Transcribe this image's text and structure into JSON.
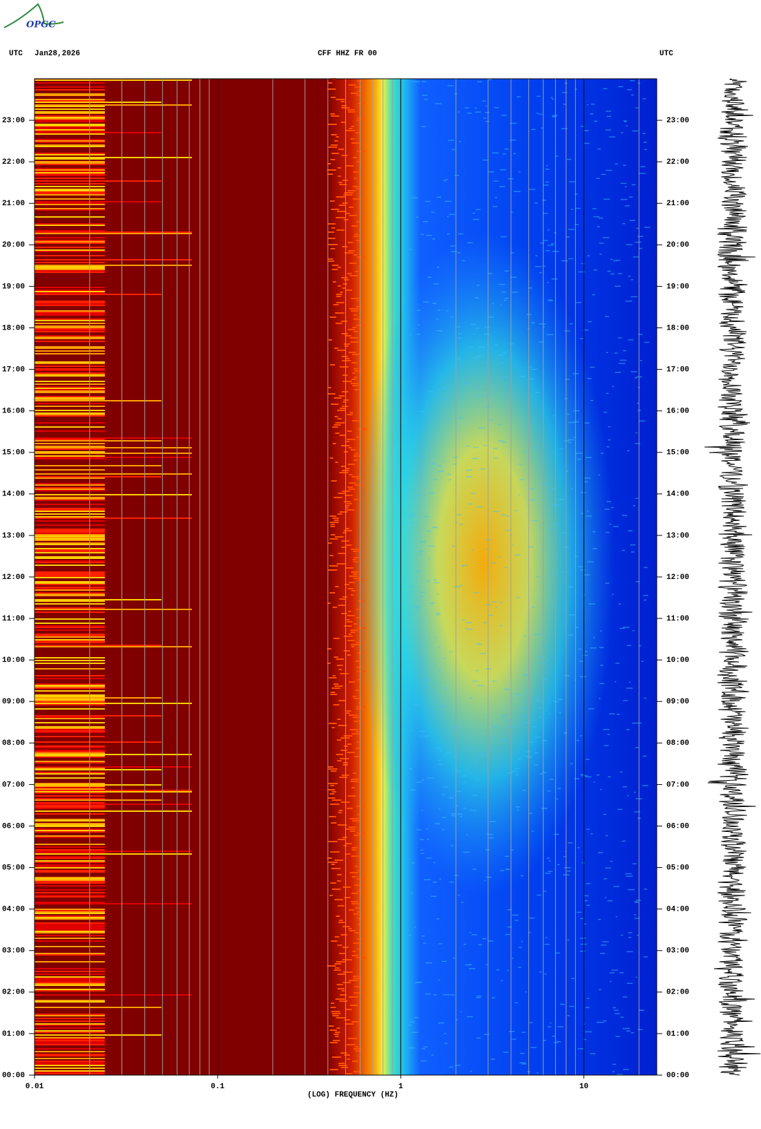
{
  "logo": "OPGC",
  "chart_data": {
    "type": "spectrogram",
    "title": "CFF HHZ FR 00",
    "date": "Jan28,2026",
    "timezone_left": "UTC",
    "timezone_right": "UTC",
    "xlabel": "(LOG) FREQUENCY (HZ)",
    "xscale": "log",
    "xlim": [
      0.01,
      25
    ],
    "xticks": [
      0.01,
      0.1,
      1,
      10
    ],
    "xgrid": [
      0.02,
      0.03,
      0.04,
      0.05,
      0.06,
      0.07,
      0.08,
      0.09,
      0.1,
      0.2,
      0.3,
      0.4,
      0.5,
      0.6,
      0.7,
      0.8,
      0.9,
      1,
      2,
      3,
      4,
      5,
      6,
      7,
      8,
      9,
      10,
      20
    ],
    "ylim": [
      0,
      24
    ],
    "yticks": [
      {
        "value": 0,
        "label": "00:00"
      },
      {
        "value": 1,
        "label": "01:00"
      },
      {
        "value": 2,
        "label": "02:00"
      },
      {
        "value": 3,
        "label": "03:00"
      },
      {
        "value": 4,
        "label": "04:00"
      },
      {
        "value": 5,
        "label": "05:00"
      },
      {
        "value": 6,
        "label": "06:00"
      },
      {
        "value": 7,
        "label": "07:00"
      },
      {
        "value": 8,
        "label": "08:00"
      },
      {
        "value": 9,
        "label": "09:00"
      },
      {
        "value": 10,
        "label": "10:00"
      },
      {
        "value": 11,
        "label": "11:00"
      },
      {
        "value": 12,
        "label": "12:00"
      },
      {
        "value": 13,
        "label": "13:00"
      },
      {
        "value": 14,
        "label": "14:00"
      },
      {
        "value": 15,
        "label": "15:00"
      },
      {
        "value": 16,
        "label": "16:00"
      },
      {
        "value": 17,
        "label": "17:00"
      },
      {
        "value": 18,
        "label": "18:00"
      },
      {
        "value": 19,
        "label": "19:00"
      },
      {
        "value": 20,
        "label": "20:00"
      },
      {
        "value": 21,
        "label": "21:00"
      },
      {
        "value": 22,
        "label": "22:00"
      },
      {
        "value": 23,
        "label": "23:00"
      }
    ]
  }
}
